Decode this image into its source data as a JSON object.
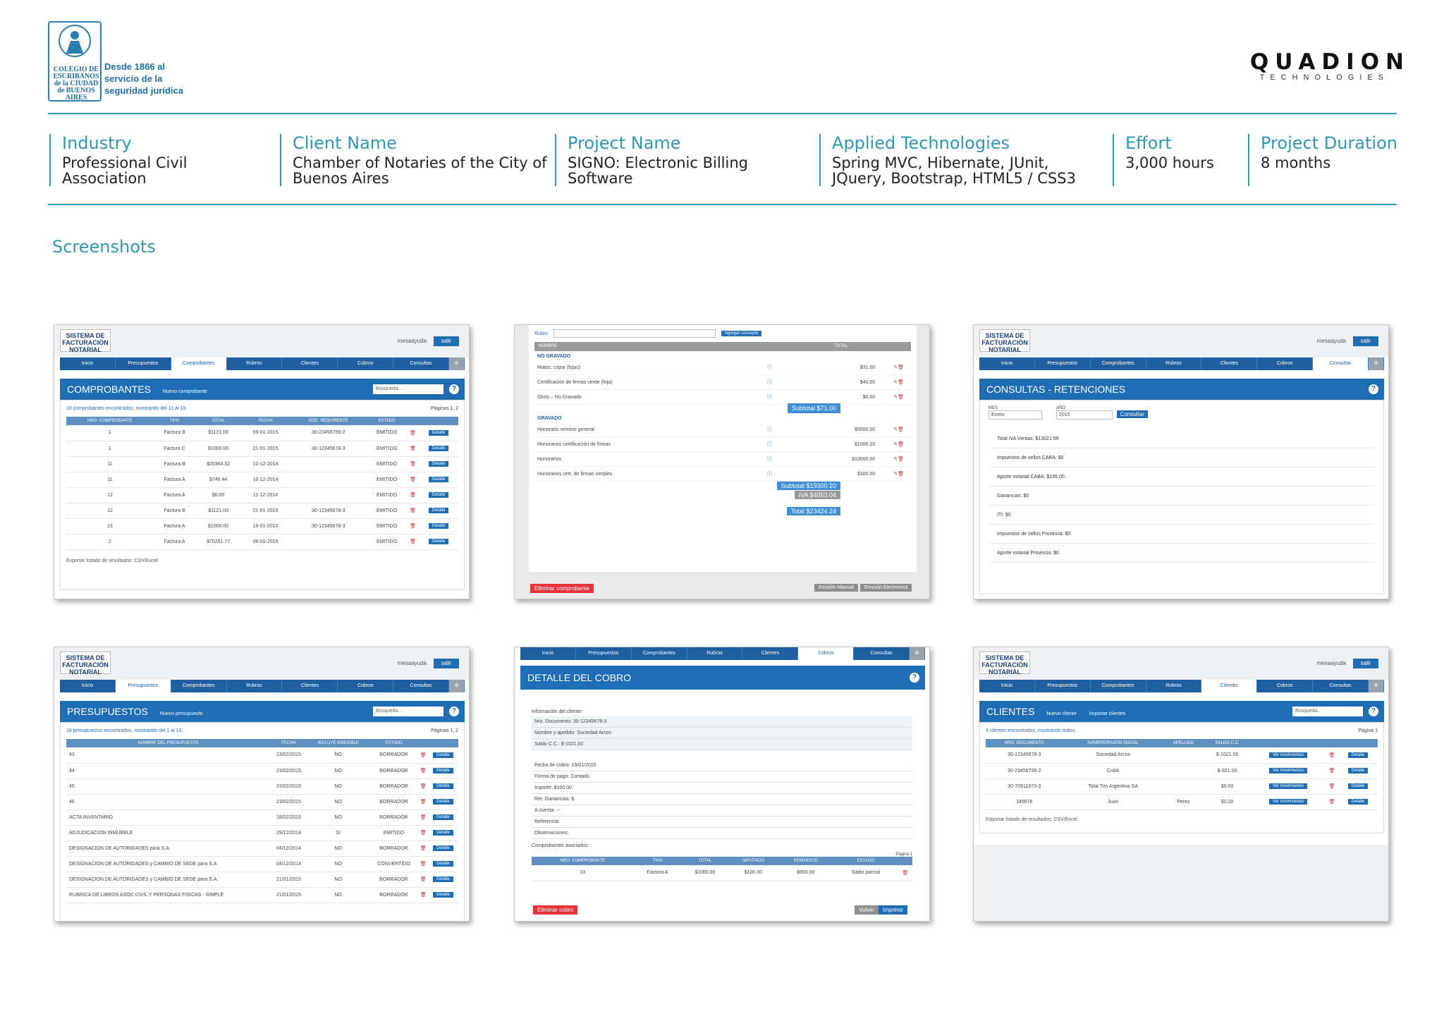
{
  "header": {
    "org_seal_text": "COLEGIO DE ESCRIBANOS de la CIUDAD de BUENOS AIRES",
    "org_slogan": "Desde 1866 al servicio de la seguridad jurídica",
    "company_name": "QUADION",
    "company_sub": "TECHNOLOGIES"
  },
  "info": {
    "industry": {
      "label": "Industry",
      "value": "Professional Civil Association"
    },
    "client": {
      "label": "Client Name",
      "value": "Chamber of Notaries of the City of Buenos Aires"
    },
    "project": {
      "label": "Project Name",
      "value": "SIGNO: Electronic Billing Software"
    },
    "tech": {
      "label": "Applied Technologies",
      "value": "Spring MVC, Hibernate, JUnit, JQuery, Bootstrap, HTML5 / CSS3"
    },
    "effort": {
      "label": "Effort",
      "value": "3,000 hours"
    },
    "duration": {
      "label": "Project Duration",
      "value": "8 months"
    }
  },
  "screenshots_title": "Screenshots",
  "app": {
    "brand": "SISTEMA DE FACTURACIÓN NOTARIAL",
    "user": "mesaayuda",
    "logout": "salir",
    "nav": [
      "Inicio",
      "Presupuestos",
      "Comprobantes",
      "Rubros",
      "Clientes",
      "Cobros",
      "Consultas"
    ]
  },
  "shots": {
    "comprobantes": {
      "title": "COMPROBANTES",
      "new_btn": "Nuevo comprobante",
      "search": "Búsqueda...",
      "found": "18 comprobantes encontrados, mostrando del 11 al 18.",
      "pages": "Páginas 1, 2",
      "cols": [
        "NRO. COMPROBANTE",
        "TIPO",
        "TOTAL",
        "FECHA",
        "DOC. REQUIRENTE",
        "ESTADO"
      ],
      "rows": [
        [
          "1",
          "Factura B",
          "$1121.00",
          "09-01-2015",
          "30-23456756-2",
          "EMITIDO"
        ],
        [
          "1",
          "Factura C",
          "$1000.00",
          "21-01-2015",
          "30-12345678-3",
          "EMITIDO"
        ],
        [
          "11",
          "Factura B",
          "$20364.52",
          "10-12-2014",
          "",
          "EMITIDO"
        ],
        [
          "11",
          "Factura A",
          "$746.44",
          "10-12-2014",
          "",
          "EMITIDO"
        ],
        [
          "12",
          "Factura A",
          "$0.00",
          "11-12-2014",
          "",
          "EMITIDO"
        ],
        [
          "12",
          "Factura B",
          "$1121.00",
          "21-01-2015",
          "30-12345678-3",
          "EMITIDO"
        ],
        [
          "13",
          "Factura A",
          "$1000.00",
          "19-01-2015",
          "30-12345678-3",
          "EMITIDO"
        ],
        [
          "2",
          "Factura A",
          "$70291.77",
          "06-01-2015",
          "",
          "EMITIDO"
        ]
      ],
      "detail": "Detalle",
      "export": "Exportar listado de resultados: CSV/Excel"
    },
    "conceptos": {
      "rubro": "Rubro",
      "add": "Agregar concepto",
      "cols": [
        "NOMBRE",
        "TOTAL"
      ],
      "no_gravado": "NO GRAVADO",
      "ng_rows": [
        [
          "Matriz, copia (fojas)",
          "$31.00"
        ],
        [
          "Certificación de firmas verde (foja)",
          "$40.00"
        ],
        [
          "Otros – No Gravado",
          "$0.00"
        ]
      ],
      "ng_subtotal": "Subtotal $71.00",
      "gravado": "GRAVADO",
      "g_rows": [
        [
          "Honorario mínimo general",
          "$5000.00"
        ],
        [
          "Honorarios certificación de firmas",
          "$1000.20"
        ],
        [
          "Honorarios",
          "$13000.00"
        ],
        [
          "Honorarios cert. de firmas simples",
          "$300.00"
        ]
      ],
      "subtotal": "Subtotal $19300.20",
      "iva": "IVA $4053.04",
      "total": "Total $23424.24",
      "delete": "Eliminar comprobante",
      "manual": "Emisión Manual",
      "electronic": "Emisión Electrónica"
    },
    "retenciones": {
      "title": "CONSULTAS - RETENCIONES",
      "mes_label": "MES",
      "mes": "Enero",
      "anio_label": "AÑO",
      "anio": "2015",
      "consultar": "Consultar",
      "lines": [
        "Total IVA Ventas: $13021.59",
        "Impuestos de sellos CABA: $0",
        "Aporte notarial CABA: $195.00",
        "Ganancias: $0",
        "ITI: $0",
        "Impuestos de sellos Provincia: $0",
        "Aporte notarial Provincia: $0"
      ]
    },
    "presupuestos": {
      "title": "PRESUPUESTOS",
      "new_btn": "Nuevo presupuesto",
      "search": "Búsqueda...",
      "found": "18 presupuestos encontrados, mostrando del 1 al 10.",
      "pages": "Páginas 1, 2",
      "cols": [
        "NOMBRE DEL PRESUPUESTO",
        "FECHA",
        "INCLUYE INMUEBLE",
        "ESTADO"
      ],
      "rows": [
        [
          "43",
          "23/02/2015",
          "NO",
          "BORRADOR"
        ],
        [
          "44",
          "23/02/2015",
          "NO",
          "BORRADOR"
        ],
        [
          "45",
          "23/02/2015",
          "NO",
          "BORRADOR"
        ],
        [
          "46",
          "23/02/2015",
          "NO",
          "BORRADOR"
        ],
        [
          "ACTA INVENTARIO",
          "18/02/2015",
          "NO",
          "BORRADOR"
        ],
        [
          "ADJUDICACION INMUEBLE",
          "29/12/2014",
          "SI",
          "EMITIDO"
        ],
        [
          "DESIGNACION DE AUTORIDADES para S.A.",
          "04/12/2014",
          "NO",
          "BORRADOR"
        ],
        [
          "DESIGNACION DE AUTORIDADES y CAMBIO DE SEDE para S.A",
          "04/12/2014",
          "NO",
          "CONVERTIDO"
        ],
        [
          "DESIGNACION DE AUTORIDADES y CAMBIO DE SEDE para S.A.",
          "21/01/2015",
          "NO",
          "BORRADOR"
        ],
        [
          "RUBRICA DE LIBROS ASOC CIVIL Y PERSONAS FISICAS - SIMPLE",
          "21/01/2015",
          "NO",
          "BORRADOR"
        ]
      ],
      "detail": "Detalle"
    },
    "cobro": {
      "title": "DETALLE DEL COBRO",
      "client_info": "Información del cliente:",
      "client_lines": [
        "Nro. Documento: 30-12345678-3",
        "Nombre y apellido: Sociedad Arcos",
        "Saldo C.C.: $-1021.00"
      ],
      "lines": [
        "Fecha de cobro: 19/01/2015",
        "Forma de pago: Contado",
        "Importe: $100.00",
        "Ret. Ganancias: $",
        "A cuenta: --",
        "Referencia:",
        "Observaciones:"
      ],
      "assoc": "Comprobantes asociados:",
      "page": "Página 1",
      "cols": [
        "NRO. COMPROBANTE",
        "TIPO",
        "TOTAL",
        "IMPUTADO",
        "PENDIENTE",
        "ESTADO"
      ],
      "row": [
        "13",
        "Factura A",
        "$1000.00",
        "$100.00",
        "$900.00",
        "Saldo parcial"
      ],
      "delete": "Eliminar cobro",
      "back": "Volver",
      "print": "Imprimir"
    },
    "clientes": {
      "title": "CLIENTES",
      "new_btn": "Nuevo cliente",
      "import_btn": "Importar clientes",
      "search": "Búsqueda...",
      "found": "4 clientes encontrados, mostrando todos.",
      "pages": "Página 1",
      "cols": [
        "NRO. DOCUMENTO",
        "NOMBRE/RAZÓN SOCIAL",
        "APELLIDO",
        "SALDO C.C."
      ],
      "rows": [
        [
          "30-12345678-3",
          "Sociedad Arcos",
          "",
          "$-1021.00"
        ],
        [
          "30-23456756-2",
          "Cubik",
          "",
          "$-921.00"
        ],
        [
          "30-70911973-3",
          "Total Tim Argentina SA",
          "",
          "$0.00"
        ],
        [
          "345678",
          "Juan",
          "Perez",
          "$0.00"
        ]
      ],
      "movements": "Ver movimientos",
      "detail": "Detalle",
      "export": "Exportar listado de resultados: CSV/Excel"
    }
  }
}
